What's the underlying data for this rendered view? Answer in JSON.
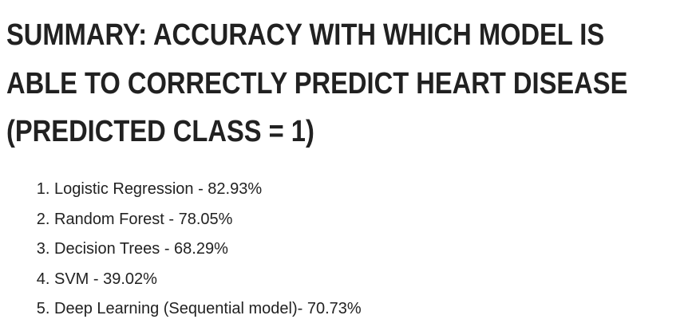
{
  "heading": {
    "lines": [
      "SUMMARY: ACCURACY WITH WHICH MODEL IS",
      "ABLE TO CORRECTLY PREDICT HEART DISEASE",
      "(PREDICTED CLASS = 1)"
    ]
  },
  "items": [
    "Logistic Regression - 82.93%",
    "Random Forest - 78.05%",
    "Decision Trees - 68.29%",
    "SVM - 39.02%",
    "Deep Learning (Sequential model)- 70.73%"
  ]
}
